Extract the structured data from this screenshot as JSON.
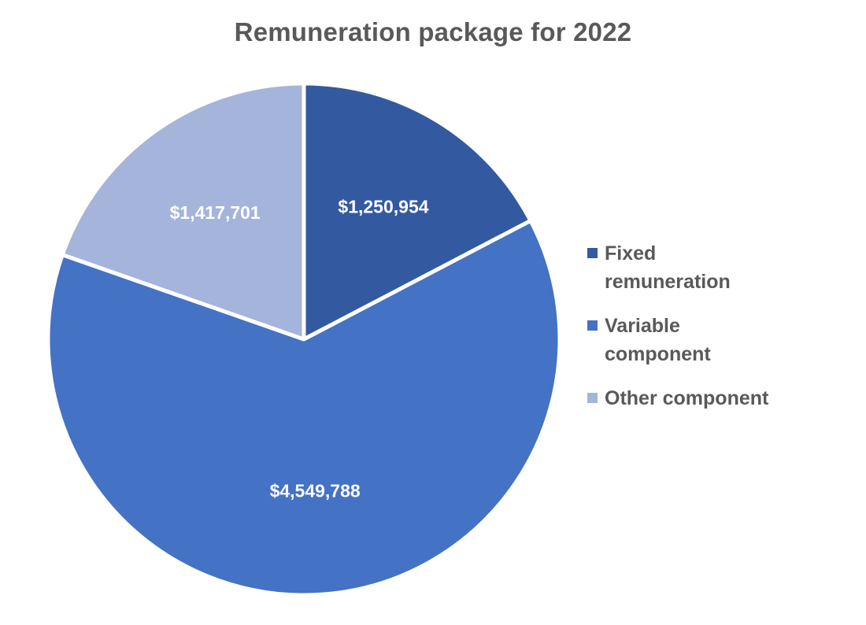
{
  "chart_data": {
    "type": "pie",
    "title": "Remuneration package for 2022",
    "categories": [
      "Fixed remuneration",
      "Variable component",
      "Other component"
    ],
    "values": [
      1250954,
      4549788,
      1417701
    ],
    "data_labels": [
      "$1,250,954",
      "$4,549,788",
      "$1,417,701"
    ],
    "legend": {
      "placement": "right",
      "items": [
        {
          "line1": "Fixed",
          "line2": "remuneration"
        },
        {
          "line1": "Variable",
          "line2": "component"
        },
        {
          "line1": "Other component",
          "line2": ""
        }
      ]
    },
    "colors": [
      "#335aa0",
      "#4472c4",
      "#a5b4da"
    ],
    "start_angle_deg": 0,
    "direction": "clockwise"
  }
}
